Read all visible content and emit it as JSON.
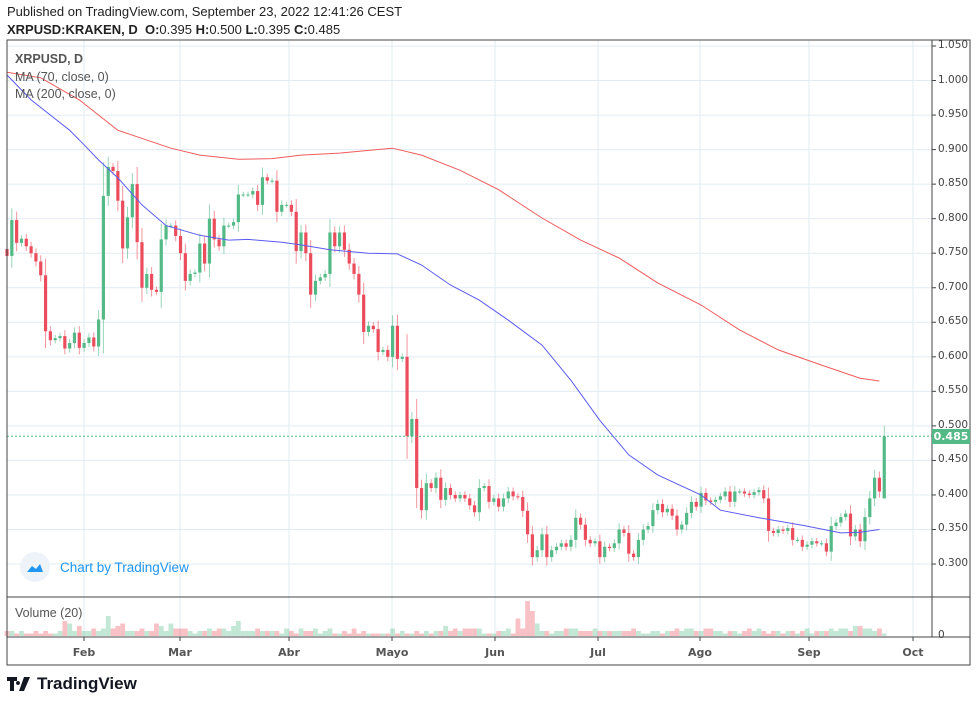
{
  "header": {
    "published": "Published on TradingView.com, September 23, 2022 12:41:26 CEST",
    "symbol": "XRPUSD:KRAKEN, D",
    "o_label": "O:",
    "o": "0.395",
    "h_label": "H:",
    "h": "0.500",
    "l_label": "L:",
    "l": "0.395",
    "c_label": "C:",
    "c": "0.485"
  },
  "legend": {
    "title": "XRPUSD, D",
    "ma1": "MA (70, close, 0)",
    "ma2": "MA (200, close, 0)",
    "volume": "Volume (20)"
  },
  "watermark": "Chart by TradingView",
  "logo": "TradingView",
  "last_price": "0.485",
  "colors": {
    "up": "#53b987",
    "down": "#eb4d5c",
    "ma70": "#5b5bf0",
    "ma200": "#f05b5b",
    "grid": "#e1ecf2",
    "last_line": "#53b987"
  },
  "chart_data": {
    "type": "candlestick",
    "symbol": "XRPUSD",
    "ylim": [
      0.26,
      1.05
    ],
    "price_ticks": [
      "1.050",
      "1.000",
      "0.950",
      "0.900",
      "0.850",
      "0.800",
      "0.750",
      "0.700",
      "0.650",
      "0.600",
      "0.550",
      "0.500",
      "0.450",
      "0.400",
      "0.350",
      "0.300"
    ],
    "volume_ticks": [
      "0"
    ],
    "time_ticks": [
      "Feb",
      "Mar",
      "Abr",
      "Mayo",
      "Jun",
      "Jul",
      "Ago",
      "Sep",
      "Oct"
    ],
    "grid": true,
    "closes": [
      0.746,
      0.798,
      0.765,
      0.771,
      0.76,
      0.75,
      0.738,
      0.718,
      0.637,
      0.624,
      0.627,
      0.63,
      0.612,
      0.62,
      0.635,
      0.613,
      0.62,
      0.628,
      0.615,
      0.654,
      0.833,
      0.875,
      0.869,
      0.826,
      0.757,
      0.802,
      0.85,
      0.766,
      0.7,
      0.72,
      0.697,
      0.694,
      0.77,
      0.79,
      0.79,
      0.775,
      0.75,
      0.71,
      0.72,
      0.722,
      0.764,
      0.735,
      0.8,
      0.77,
      0.76,
      0.79,
      0.79,
      0.795,
      0.835,
      0.835,
      0.835,
      0.84,
      0.82,
      0.86,
      0.855,
      0.855,
      0.81,
      0.82,
      0.82,
      0.81,
      0.753,
      0.78,
      0.75,
      0.69,
      0.71,
      0.715,
      0.72,
      0.78,
      0.76,
      0.78,
      0.755,
      0.735,
      0.72,
      0.69,
      0.636,
      0.645,
      0.64,
      0.607,
      0.61,
      0.6,
      0.645,
      0.597,
      0.6,
      0.485,
      0.51,
      0.41,
      0.378,
      0.417,
      0.41,
      0.425,
      0.393,
      0.41,
      0.4,
      0.395,
      0.4,
      0.395,
      0.385,
      0.375,
      0.41,
      0.413,
      0.39,
      0.395,
      0.383,
      0.395,
      0.405,
      0.398,
      0.397,
      0.377,
      0.343,
      0.31,
      0.32,
      0.343,
      0.31,
      0.32,
      0.325,
      0.33,
      0.325,
      0.335,
      0.367,
      0.357,
      0.335,
      0.33,
      0.333,
      0.31,
      0.325,
      0.323,
      0.33,
      0.35,
      0.345,
      0.315,
      0.31,
      0.335,
      0.35,
      0.355,
      0.378,
      0.387,
      0.375,
      0.38,
      0.37,
      0.35,
      0.357,
      0.374,
      0.39,
      0.383,
      0.403,
      0.392,
      0.39,
      0.393,
      0.398,
      0.405,
      0.39,
      0.405,
      0.405,
      0.402,
      0.4,
      0.404,
      0.407,
      0.395,
      0.348,
      0.345,
      0.35,
      0.348,
      0.352,
      0.335,
      0.335,
      0.325,
      0.328,
      0.333,
      0.33,
      0.33,
      0.318,
      0.355,
      0.36,
      0.368,
      0.373,
      0.34,
      0.35,
      0.333,
      0.368,
      0.395,
      0.425,
      0.405,
      0.485
    ],
    "last_candle": {
      "open": 0.395,
      "high": 0.5,
      "low": 0.395,
      "close": 0.485
    },
    "volume_relative": [
      2,
      2,
      1,
      2,
      1,
      1,
      2,
      1,
      2,
      1,
      1,
      2,
      6,
      5,
      2,
      4,
      2,
      2,
      3,
      2,
      3,
      8,
      3,
      4,
      5,
      2,
      2,
      2,
      3,
      2,
      2,
      5,
      4,
      2,
      5,
      3,
      3,
      3,
      2,
      1,
      2,
      2,
      3,
      2,
      3,
      3,
      2,
      4,
      6,
      2,
      2,
      2,
      3,
      2,
      2,
      2,
      2,
      1,
      3,
      2,
      1,
      3,
      2,
      2,
      3,
      1,
      2,
      3,
      1,
      1,
      2,
      1,
      3,
      1,
      2,
      1,
      1,
      1,
      1,
      1,
      3,
      1,
      2,
      1,
      1,
      2,
      1,
      2,
      1,
      2,
      2,
      4,
      2,
      3,
      2,
      3,
      3,
      3,
      3,
      1,
      1,
      1,
      2,
      2,
      3,
      1,
      7,
      3,
      14,
      10,
      5,
      2,
      2,
      1,
      2,
      2,
      3,
      3,
      3,
      2,
      2,
      2,
      3,
      2,
      2,
      2,
      2,
      2,
      2,
      2,
      3,
      2,
      1,
      1,
      2,
      2,
      1,
      2,
      2,
      3,
      2,
      3,
      3,
      2,
      2,
      3,
      3,
      2,
      2,
      1,
      2,
      2,
      1,
      2,
      3,
      2,
      3,
      2,
      1,
      2,
      2,
      1,
      2,
      2,
      1,
      2,
      3,
      1,
      2,
      2,
      2,
      3,
      2,
      3,
      3,
      2,
      4,
      4,
      3,
      3,
      2,
      3
    ],
    "series": [
      {
        "name": "MA (70, close, 0)",
        "color": "#5b5bf0",
        "points": [
          [
            0,
            1.008
          ],
          [
            5,
            0.972
          ],
          [
            13,
            0.928
          ],
          [
            16,
            0.907
          ],
          [
            19,
            0.885
          ],
          [
            23,
            0.859
          ],
          [
            28,
            0.82
          ],
          [
            33,
            0.79
          ],
          [
            40,
            0.776
          ],
          [
            46,
            0.769
          ],
          [
            50,
            0.77
          ],
          [
            57,
            0.766
          ],
          [
            61,
            0.762
          ],
          [
            67,
            0.755
          ],
          [
            75,
            0.75
          ],
          [
            81,
            0.749
          ],
          [
            86,
            0.733
          ],
          [
            92,
            0.704
          ],
          [
            98,
            0.682
          ],
          [
            104,
            0.653
          ],
          [
            111,
            0.617
          ],
          [
            117,
            0.566
          ],
          [
            123,
            0.508
          ],
          [
            129,
            0.458
          ],
          [
            135,
            0.429
          ],
          [
            144,
            0.4
          ],
          [
            148,
            0.378
          ],
          [
            156,
            0.367
          ],
          [
            165,
            0.356
          ],
          [
            173,
            0.345
          ],
          [
            177,
            0.346
          ],
          [
            181,
            0.35
          ]
        ]
      },
      {
        "name": "MA (200, close, 0)",
        "color": "#f05b5b",
        "points": [
          [
            0,
            1.012
          ],
          [
            7,
            1.004
          ],
          [
            15,
            0.972
          ],
          [
            23,
            0.928
          ],
          [
            34,
            0.902
          ],
          [
            40,
            0.892
          ],
          [
            48,
            0.886
          ],
          [
            55,
            0.887
          ],
          [
            61,
            0.892
          ],
          [
            69,
            0.895
          ],
          [
            80,
            0.902
          ],
          [
            86,
            0.892
          ],
          [
            94,
            0.87
          ],
          [
            102,
            0.842
          ],
          [
            111,
            0.801
          ],
          [
            119,
            0.769
          ],
          [
            127,
            0.743
          ],
          [
            135,
            0.707
          ],
          [
            144,
            0.675
          ],
          [
            152,
            0.639
          ],
          [
            160,
            0.61
          ],
          [
            169,
            0.588
          ],
          [
            177,
            0.569
          ],
          [
            181,
            0.565
          ]
        ]
      }
    ]
  }
}
